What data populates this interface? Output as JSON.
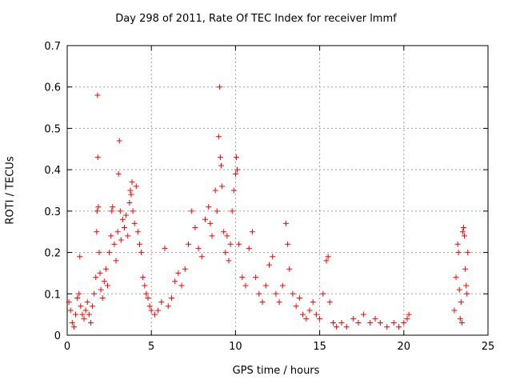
{
  "chart_data": {
    "type": "scatter",
    "title": "Day 298 of 2011, Rate Of TEC Index for receiver lmmf",
    "xlabel": "GPS time / hours",
    "ylabel": "ROTI / TECUs",
    "xlim": [
      0,
      25
    ],
    "ylim": [
      0,
      0.7
    ],
    "xticks": [
      "0",
      "5",
      "10",
      "15",
      "20",
      "25"
    ],
    "yticks": [
      "0",
      "0.1",
      "0.2",
      "0.3",
      "0.4",
      "0.5",
      "0.6",
      "0.7"
    ],
    "grid": true,
    "marker": "+",
    "color": "#ff0000",
    "series": [
      {
        "points": [
          [
            0.1,
            0.08
          ],
          [
            0.2,
            0.06
          ],
          [
            0.3,
            0.03
          ],
          [
            0.4,
            0.02
          ],
          [
            0.5,
            0.05
          ],
          [
            0.6,
            0.09
          ],
          [
            0.7,
            0.1
          ],
          [
            0.75,
            0.19
          ],
          [
            0.8,
            0.07
          ],
          [
            0.9,
            0.05
          ],
          [
            1.0,
            0.04
          ],
          [
            1.1,
            0.06
          ],
          [
            1.2,
            0.08
          ],
          [
            1.3,
            0.05
          ],
          [
            1.4,
            0.03
          ],
          [
            1.5,
            0.07
          ],
          [
            1.6,
            0.1
          ],
          [
            1.7,
            0.14
          ],
          [
            1.75,
            0.25
          ],
          [
            1.78,
            0.3
          ],
          [
            1.8,
            0.58
          ],
          [
            1.82,
            0.43
          ],
          [
            1.85,
            0.31
          ],
          [
            1.9,
            0.2
          ],
          [
            1.95,
            0.15
          ],
          [
            2.0,
            0.11
          ],
          [
            2.1,
            0.09
          ],
          [
            2.2,
            0.13
          ],
          [
            2.3,
            0.16
          ],
          [
            2.4,
            0.12
          ],
          [
            2.5,
            0.2
          ],
          [
            2.6,
            0.24
          ],
          [
            2.65,
            0.3
          ],
          [
            2.7,
            0.31
          ],
          [
            2.8,
            0.22
          ],
          [
            2.9,
            0.18
          ],
          [
            3.0,
            0.25
          ],
          [
            3.05,
            0.39
          ],
          [
            3.1,
            0.47
          ],
          [
            3.15,
            0.3
          ],
          [
            3.2,
            0.23
          ],
          [
            3.3,
            0.28
          ],
          [
            3.4,
            0.26
          ],
          [
            3.5,
            0.29
          ],
          [
            3.6,
            0.24
          ],
          [
            3.7,
            0.32
          ],
          [
            3.75,
            0.35
          ],
          [
            3.8,
            0.34
          ],
          [
            3.85,
            0.37
          ],
          [
            3.9,
            0.3
          ],
          [
            4.0,
            0.27
          ],
          [
            4.1,
            0.36
          ],
          [
            4.2,
            0.25
          ],
          [
            4.3,
            0.22
          ],
          [
            4.4,
            0.2
          ],
          [
            4.5,
            0.14
          ],
          [
            4.6,
            0.12
          ],
          [
            4.7,
            0.1
          ],
          [
            4.8,
            0.09
          ],
          [
            4.9,
            0.07
          ],
          [
            5.0,
            0.06
          ],
          [
            5.2,
            0.05
          ],
          [
            5.4,
            0.06
          ],
          [
            5.6,
            0.08
          ],
          [
            5.8,
            0.21
          ],
          [
            6.0,
            0.07
          ],
          [
            6.2,
            0.09
          ],
          [
            6.4,
            0.13
          ],
          [
            6.6,
            0.15
          ],
          [
            6.8,
            0.12
          ],
          [
            7.0,
            0.16
          ],
          [
            7.2,
            0.22
          ],
          [
            7.4,
            0.3
          ],
          [
            7.6,
            0.26
          ],
          [
            7.8,
            0.21
          ],
          [
            8.0,
            0.19
          ],
          [
            8.2,
            0.28
          ],
          [
            8.4,
            0.31
          ],
          [
            8.5,
            0.27
          ],
          [
            8.6,
            0.24
          ],
          [
            8.8,
            0.35
          ],
          [
            8.9,
            0.3
          ],
          [
            9.0,
            0.48
          ],
          [
            9.05,
            0.6
          ],
          [
            9.1,
            0.43
          ],
          [
            9.15,
            0.41
          ],
          [
            9.2,
            0.36
          ],
          [
            9.3,
            0.25
          ],
          [
            9.4,
            0.2
          ],
          [
            9.5,
            0.24
          ],
          [
            9.6,
            0.18
          ],
          [
            9.7,
            0.22
          ],
          [
            9.8,
            0.3
          ],
          [
            9.9,
            0.35
          ],
          [
            10.0,
            0.39
          ],
          [
            10.05,
            0.43
          ],
          [
            10.1,
            0.4
          ],
          [
            10.2,
            0.22
          ],
          [
            10.4,
            0.14
          ],
          [
            10.6,
            0.12
          ],
          [
            10.8,
            0.21
          ],
          [
            11.0,
            0.25
          ],
          [
            11.2,
            0.14
          ],
          [
            11.4,
            0.1
          ],
          [
            11.6,
            0.08
          ],
          [
            11.8,
            0.12
          ],
          [
            12.0,
            0.17
          ],
          [
            12.2,
            0.19
          ],
          [
            12.4,
            0.1
          ],
          [
            12.6,
            0.08
          ],
          [
            12.8,
            0.12
          ],
          [
            13.0,
            0.27
          ],
          [
            13.1,
            0.22
          ],
          [
            13.2,
            0.16
          ],
          [
            13.4,
            0.1
          ],
          [
            13.6,
            0.07
          ],
          [
            13.8,
            0.09
          ],
          [
            14.0,
            0.05
          ],
          [
            14.2,
            0.04
          ],
          [
            14.4,
            0.06
          ],
          [
            14.6,
            0.08
          ],
          [
            14.8,
            0.05
          ],
          [
            15.0,
            0.04
          ],
          [
            15.2,
            0.1
          ],
          [
            15.4,
            0.18
          ],
          [
            15.5,
            0.19
          ],
          [
            15.6,
            0.08
          ],
          [
            15.8,
            0.03
          ],
          [
            16.0,
            0.02
          ],
          [
            16.3,
            0.03
          ],
          [
            16.6,
            0.02
          ],
          [
            17.0,
            0.04
          ],
          [
            17.3,
            0.03
          ],
          [
            17.6,
            0.05
          ],
          [
            18.0,
            0.03
          ],
          [
            18.3,
            0.04
          ],
          [
            18.6,
            0.03
          ],
          [
            19.0,
            0.02
          ],
          [
            19.4,
            0.03
          ],
          [
            19.7,
            0.02
          ],
          [
            20.0,
            0.03
          ],
          [
            20.2,
            0.04
          ],
          [
            20.3,
            0.05
          ],
          [
            23.0,
            0.06
          ],
          [
            23.1,
            0.14
          ],
          [
            23.2,
            0.22
          ],
          [
            23.25,
            0.2
          ],
          [
            23.3,
            0.11
          ],
          [
            23.4,
            0.08
          ],
          [
            23.5,
            0.25
          ],
          [
            23.55,
            0.26
          ],
          [
            23.6,
            0.24
          ],
          [
            23.65,
            0.16
          ],
          [
            23.7,
            0.12
          ],
          [
            23.75,
            0.1
          ],
          [
            23.8,
            0.2
          ],
          [
            23.35,
            0.04
          ],
          [
            23.45,
            0.03
          ]
        ]
      }
    ]
  }
}
